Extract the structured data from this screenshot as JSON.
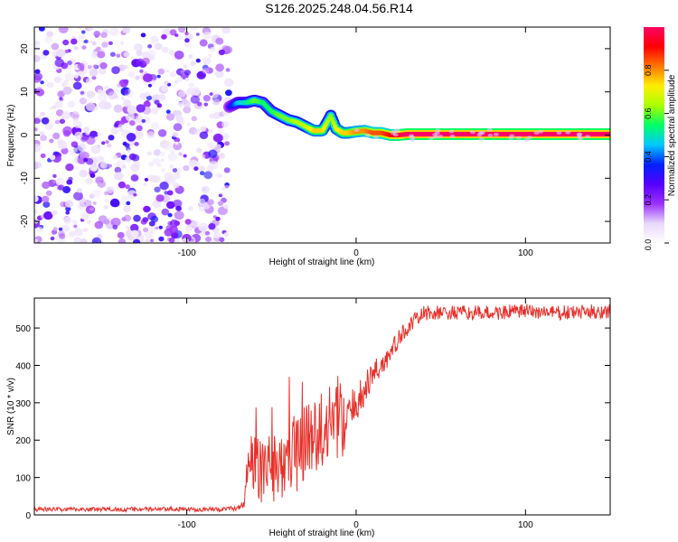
{
  "figure_title": "S126.2025.248.04.56.R14",
  "chart_data": [
    {
      "type": "heatmap",
      "title": "S126.2025.248.04.56.R14",
      "xlabel": "Height of straight line (km)",
      "ylabel": "Frequency (Hz)",
      "xlim": [
        -190,
        150
      ],
      "ylim": [
        -25,
        25
      ],
      "x_ticks": [
        -100,
        0,
        100
      ],
      "y_ticks": [
        -20,
        -10,
        0,
        10,
        20
      ],
      "colorbar": {
        "label": "Normalized spectral amplitude",
        "range": [
          0,
          1
        ],
        "ticks": [
          "0.0",
          "0.2",
          "0.4",
          "0.6",
          "0.8"
        ],
        "colormap": [
          "#ffffff",
          "#e8d8fb",
          "#9b30ff",
          "#5500ff",
          "#0022ff",
          "#00c8ff",
          "#00ff66",
          "#aaff00",
          "#ffee00",
          "#ff7700",
          "#ff0000",
          "#ff0066"
        ]
      },
      "noise_region": {
        "x": [
          -190,
          -75
        ],
        "y": [
          -25,
          25
        ],
        "amplitude": [
          0.05,
          0.35
        ]
      },
      "signal_ridge": {
        "x": [
          -75,
          -70,
          -65,
          -60,
          -55,
          -50,
          -45,
          -40,
          -35,
          -30,
          -25,
          -20,
          -17,
          -15,
          -12,
          -8,
          -5,
          0,
          5,
          10,
          15,
          20,
          25,
          30,
          40,
          60,
          80,
          100,
          120,
          150
        ],
        "f": [
          6.5,
          7.5,
          7.5,
          8,
          7.5,
          5.5,
          4.5,
          3.5,
          3,
          2,
          1,
          1,
          3,
          4.5,
          1.5,
          0.5,
          0.5,
          0.8,
          1,
          0.5,
          0.5,
          0,
          0,
          0.2,
          0.2,
          0.2,
          0.2,
          0.2,
          0.2,
          0.2
        ],
        "amp": [
          0.3,
          0.45,
          0.5,
          0.6,
          0.55,
          0.55,
          0.6,
          0.6,
          0.65,
          0.65,
          0.75,
          0.75,
          0.65,
          0.6,
          0.7,
          0.75,
          0.75,
          0.8,
          0.8,
          0.85,
          0.85,
          0.9,
          0.95,
          1,
          1,
          1,
          1,
          1,
          1,
          1
        ]
      }
    },
    {
      "type": "line",
      "xlabel": "Height of straight line (km)",
      "ylabel": "SNR (10 * v/v)",
      "xlim": [
        -190,
        150
      ],
      "ylim": [
        0,
        580
      ],
      "x_ticks": [
        -100,
        0,
        100
      ],
      "y_ticks": [
        0,
        100,
        200,
        300,
        400,
        500
      ],
      "series": [
        {
          "name": "SNR",
          "color": "#e8302a",
          "x": [
            -190,
            -80,
            -70,
            -66,
            -63,
            -60,
            -55,
            -50,
            -45,
            -40,
            -35,
            -30,
            -25,
            -20,
            -15,
            -12,
            -10,
            -6,
            -3,
            0,
            5,
            10,
            15,
            20,
            25,
            30,
            35,
            40,
            60,
            80,
            100,
            120,
            150
          ],
          "values": [
            15,
            15,
            18,
            30,
            160,
            140,
            110,
            130,
            150,
            140,
            170,
            210,
            220,
            200,
            250,
            270,
            260,
            240,
            270,
            300,
            330,
            380,
            400,
            430,
            470,
            500,
            520,
            540,
            540,
            540,
            545,
            540,
            545
          ],
          "noise": [
            6,
            6,
            6,
            10,
            70,
            80,
            90,
            100,
            110,
            110,
            110,
            110,
            100,
            100,
            100,
            110,
            120,
            70,
            60,
            50,
            45,
            40,
            35,
            30,
            25,
            22,
            22,
            20,
            20,
            20,
            20,
            20,
            20
          ]
        }
      ]
    }
  ]
}
